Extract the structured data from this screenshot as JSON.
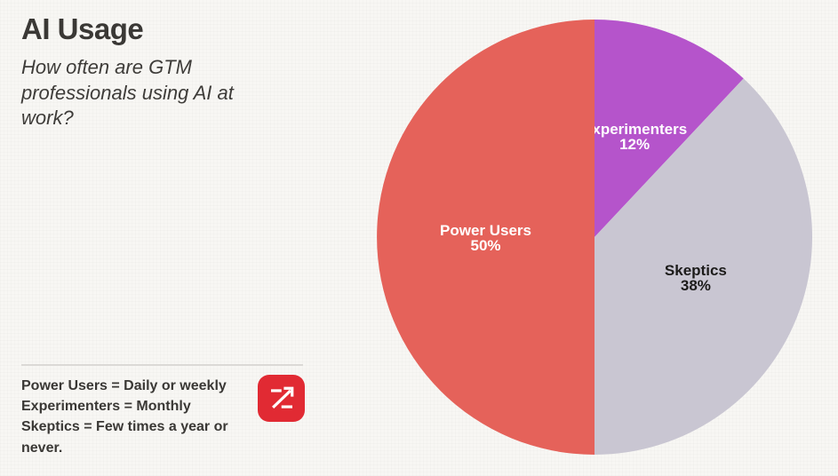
{
  "page": {
    "background": "#f8f7f4"
  },
  "header": {
    "title": "AI Usage",
    "subtitle": "How often are GTM professionals using AI at work?"
  },
  "footnote": {
    "lines": [
      "Power Users = Daily or weekly",
      "Experimenters = Monthly",
      "Skeptics = Few times a year or never."
    ]
  },
  "logo": {
    "name": "zoominfo-logo",
    "background_color": "#e12a33",
    "glyph_color": "#ffffff"
  },
  "chart_data": {
    "type": "pie",
    "title": "AI Usage",
    "subtitle": "How often are GTM professionals using AI at work?",
    "start_angle_deg": 0,
    "direction": "clockwise-from-top",
    "labels_position": "inside",
    "legend_position": "none",
    "segments": [
      {
        "label": "Experimenters",
        "value": 12,
        "pct_label": "12%",
        "color": "#b554cb",
        "label_color": "#ffffff"
      },
      {
        "label": "Skeptics",
        "value": 38,
        "pct_label": "38%",
        "color": "#c9c6d2",
        "label_color": "#1c1b1a"
      },
      {
        "label": "Power Users",
        "value": 50,
        "pct_label": "50%",
        "color": "#e5625a",
        "label_color": "#ffffff"
      }
    ]
  }
}
